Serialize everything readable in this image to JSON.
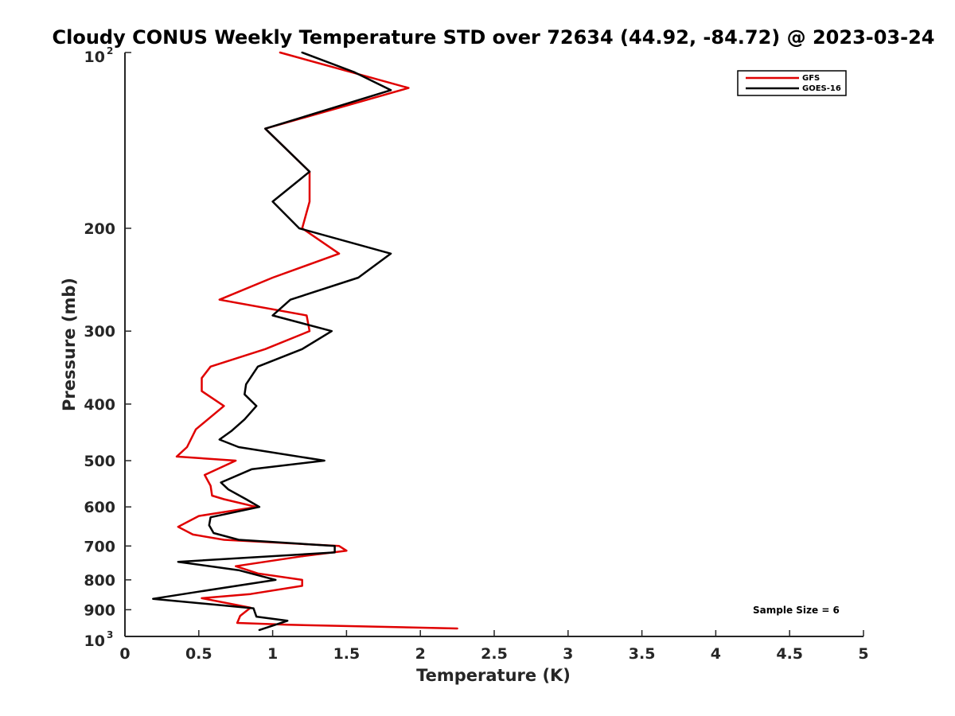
{
  "chart_data": {
    "type": "line",
    "title": "Cloudy CONUS Weekly Temperature STD over 72634 (44.92, -84.72) @ 2023-03-24",
    "xlabel": "Temperature (K)",
    "ylabel": "Pressure (mb)",
    "xlim": [
      0,
      5
    ],
    "ylim": [
      100,
      1000
    ],
    "y_scale": "log",
    "y_reversed": true,
    "grid": false,
    "legend_position": "top-right",
    "x_ticks": [
      "0",
      "0.5",
      "1",
      "1.5",
      "2",
      "2.5",
      "3",
      "3.5",
      "4",
      "4.5",
      "5"
    ],
    "y_ticks": [
      {
        "value": 100,
        "base": "10",
        "exp": "2"
      },
      {
        "value": 200,
        "label": "200"
      },
      {
        "value": 300,
        "label": "300"
      },
      {
        "value": 400,
        "label": "400"
      },
      {
        "value": 500,
        "label": "500"
      },
      {
        "value": 600,
        "label": "600"
      },
      {
        "value": 700,
        "label": "700"
      },
      {
        "value": 800,
        "label": "800"
      },
      {
        "value": 900,
        "label": "900"
      },
      {
        "value": 1000,
        "base": "10",
        "exp": "3"
      }
    ],
    "annotation": "Sample Size = 6",
    "series": [
      {
        "name": "GFS",
        "color": "#e00000",
        "points": [
          {
            "x": 1.05,
            "y": 100
          },
          {
            "x": 1.92,
            "y": 115
          },
          {
            "x": 0.95,
            "y": 135
          },
          {
            "x": 1.25,
            "y": 160
          },
          {
            "x": 1.25,
            "y": 180
          },
          {
            "x": 1.2,
            "y": 200
          },
          {
            "x": 1.45,
            "y": 221
          },
          {
            "x": 1.0,
            "y": 243
          },
          {
            "x": 0.64,
            "y": 265
          },
          {
            "x": 1.23,
            "y": 282
          },
          {
            "x": 1.25,
            "y": 300
          },
          {
            "x": 0.95,
            "y": 322
          },
          {
            "x": 0.58,
            "y": 345
          },
          {
            "x": 0.52,
            "y": 361
          },
          {
            "x": 0.52,
            "y": 380
          },
          {
            "x": 0.67,
            "y": 403
          },
          {
            "x": 0.48,
            "y": 442
          },
          {
            "x": 0.42,
            "y": 474
          },
          {
            "x": 0.35,
            "y": 492
          },
          {
            "x": 0.75,
            "y": 500
          },
          {
            "x": 0.54,
            "y": 529
          },
          {
            "x": 0.58,
            "y": 552
          },
          {
            "x": 0.59,
            "y": 574
          },
          {
            "x": 0.67,
            "y": 582
          },
          {
            "x": 0.89,
            "y": 600
          },
          {
            "x": 0.5,
            "y": 622
          },
          {
            "x": 0.36,
            "y": 649
          },
          {
            "x": 0.46,
            "y": 669
          },
          {
            "x": 0.67,
            "y": 683
          },
          {
            "x": 1.45,
            "y": 700
          },
          {
            "x": 1.5,
            "y": 713
          },
          {
            "x": 1.2,
            "y": 729
          },
          {
            "x": 0.75,
            "y": 758
          },
          {
            "x": 0.9,
            "y": 780
          },
          {
            "x": 1.2,
            "y": 800
          },
          {
            "x": 1.2,
            "y": 819
          },
          {
            "x": 0.85,
            "y": 846
          },
          {
            "x": 0.52,
            "y": 860
          },
          {
            "x": 0.85,
            "y": 893
          },
          {
            "x": 0.78,
            "y": 922
          },
          {
            "x": 0.76,
            "y": 948
          },
          {
            "x": 1.1,
            "y": 955
          },
          {
            "x": 2.25,
            "y": 969
          }
        ]
      },
      {
        "name": "GOES-16",
        "color": "#000000",
        "points": [
          {
            "x": 1.2,
            "y": 100
          },
          {
            "x": 1.55,
            "y": 108
          },
          {
            "x": 1.8,
            "y": 116
          },
          {
            "x": 0.95,
            "y": 135
          },
          {
            "x": 1.25,
            "y": 160
          },
          {
            "x": 1.0,
            "y": 180
          },
          {
            "x": 1.18,
            "y": 200
          },
          {
            "x": 1.8,
            "y": 221
          },
          {
            "x": 1.58,
            "y": 243
          },
          {
            "x": 1.12,
            "y": 265
          },
          {
            "x": 1.0,
            "y": 282
          },
          {
            "x": 1.4,
            "y": 300
          },
          {
            "x": 1.2,
            "y": 322
          },
          {
            "x": 0.9,
            "y": 345
          },
          {
            "x": 0.82,
            "y": 370
          },
          {
            "x": 0.81,
            "y": 385
          },
          {
            "x": 0.89,
            "y": 403
          },
          {
            "x": 0.81,
            "y": 425
          },
          {
            "x": 0.72,
            "y": 445
          },
          {
            "x": 0.64,
            "y": 460
          },
          {
            "x": 0.77,
            "y": 474
          },
          {
            "x": 1.35,
            "y": 500
          },
          {
            "x": 0.86,
            "y": 517
          },
          {
            "x": 0.65,
            "y": 545
          },
          {
            "x": 0.7,
            "y": 560
          },
          {
            "x": 0.82,
            "y": 582
          },
          {
            "x": 0.91,
            "y": 600
          },
          {
            "x": 0.58,
            "y": 625
          },
          {
            "x": 0.57,
            "y": 645
          },
          {
            "x": 0.6,
            "y": 665
          },
          {
            "x": 0.77,
            "y": 683
          },
          {
            "x": 1.42,
            "y": 700
          },
          {
            "x": 1.42,
            "y": 718
          },
          {
            "x": 0.36,
            "y": 745
          },
          {
            "x": 0.77,
            "y": 770
          },
          {
            "x": 1.02,
            "y": 800
          },
          {
            "x": 0.5,
            "y": 838
          },
          {
            "x": 0.19,
            "y": 862
          },
          {
            "x": 0.87,
            "y": 895
          },
          {
            "x": 0.89,
            "y": 925
          },
          {
            "x": 1.1,
            "y": 940
          },
          {
            "x": 0.91,
            "y": 975
          }
        ]
      }
    ]
  }
}
